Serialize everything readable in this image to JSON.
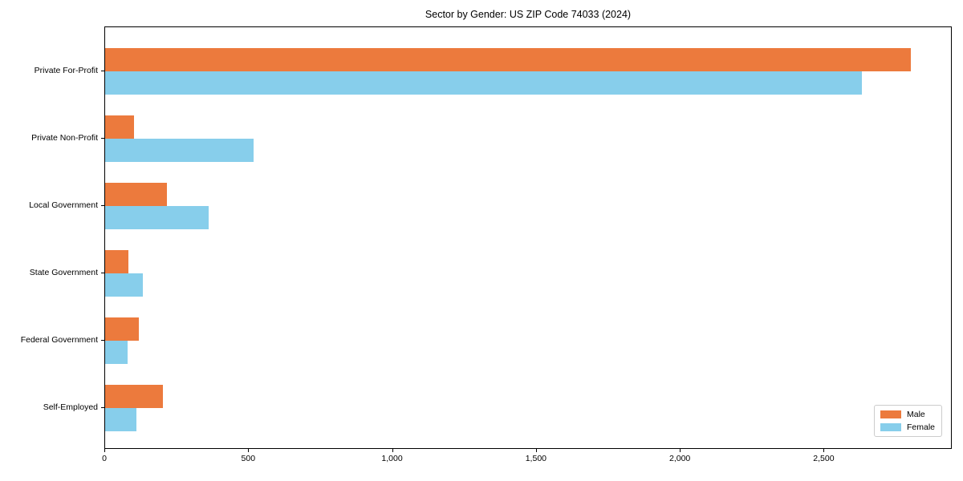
{
  "chart_data": {
    "type": "bar",
    "orientation": "horizontal",
    "title": "Sector by Gender: US ZIP Code 74033 (2024)",
    "categories": [
      "Private For-Profit",
      "Private Non-Profit",
      "Local Government",
      "State Government",
      "Federal Government",
      "Self-Employed"
    ],
    "series": [
      {
        "name": "Male",
        "color": "#ec7a3d",
        "values": [
          2800,
          100,
          215,
          82,
          118,
          200
        ]
      },
      {
        "name": "Female",
        "color": "#87ceeb",
        "values": [
          2630,
          515,
          360,
          130,
          78,
          108
        ]
      }
    ],
    "xlabel": "",
    "ylabel": "",
    "xlim": [
      0,
      2945
    ],
    "xticks": [
      0,
      500,
      1000,
      1500,
      2000,
      2500
    ],
    "xtick_labels": [
      "0",
      "500",
      "1,000",
      "1,500",
      "2,000",
      "2,500"
    ],
    "grid": false,
    "legend_position": "lower right",
    "frame_color": "#000000",
    "background_color": "#ffffff",
    "text_color": "#000000"
  }
}
